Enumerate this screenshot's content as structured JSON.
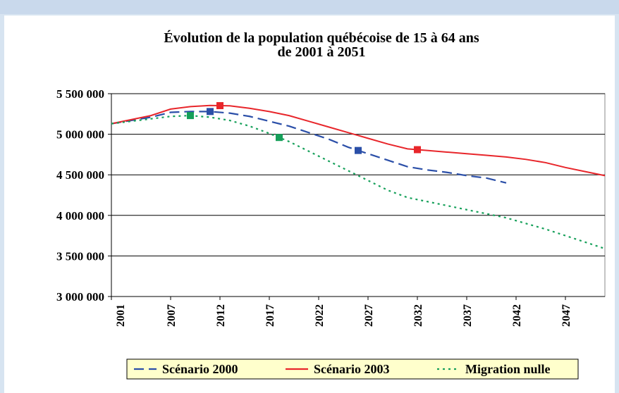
{
  "chart_data": {
    "type": "line",
    "title": "Évolution de la population québécoise de 15 à 64 ans",
    "subtitle": "de 2001 à 2051",
    "x": [
      2001,
      2003,
      2005,
      2007,
      2009,
      2011,
      2013,
      2015,
      2017,
      2019,
      2021,
      2023,
      2025,
      2027,
      2029,
      2031,
      2033,
      2035,
      2037,
      2039,
      2041,
      2043,
      2045,
      2047,
      2049,
      2051
    ],
    "xlim": [
      2001,
      2051
    ],
    "xticks": [
      2001,
      2007,
      2012,
      2017,
      2022,
      2027,
      2032,
      2037,
      2042,
      2047
    ],
    "ylim": [
      3000000,
      5500000
    ],
    "yticks": [
      {
        "value": 3000000,
        "label": "3 000 000"
      },
      {
        "value": 3500000,
        "label": "3 500 000"
      },
      {
        "value": 4000000,
        "label": "4 000 000"
      },
      {
        "value": 4500000,
        "label": "4 500 000"
      },
      {
        "value": 5000000,
        "label": "5 000 000"
      },
      {
        "value": 5500000,
        "label": "5 500 000"
      }
    ],
    "grid": true,
    "legend": "bottom",
    "series": [
      {
        "name": "Scénario 2000",
        "color": "#2b4fa8",
        "dash": "dashed",
        "markers": [
          2011,
          2026
        ],
        "values": [
          5130000,
          5170000,
          5210000,
          5270000,
          5280000,
          5280000,
          5260000,
          5220000,
          5160000,
          5100000,
          5020000,
          4940000,
          4840000,
          4760000,
          4680000,
          4600000,
          4560000,
          4530000,
          4490000,
          4460000,
          4400000,
          null,
          null,
          null,
          null,
          null
        ]
      },
      {
        "name": "Scénario 2003",
        "color": "#e8262b",
        "dash": "solid",
        "markers": [
          2012,
          2032
        ],
        "values": [
          5130000,
          5180000,
          5230000,
          5310000,
          5340000,
          5355000,
          5350000,
          5320000,
          5280000,
          5230000,
          5160000,
          5090000,
          5020000,
          4950000,
          4880000,
          4820000,
          4800000,
          4780000,
          4760000,
          4740000,
          4720000,
          4690000,
          4650000,
          4590000,
          4540000,
          4490000
        ]
      },
      {
        "name": "Migration nulle",
        "color": "#16a05a",
        "dash": "dotted",
        "markers": [
          2009,
          2018
        ],
        "values": [
          5130000,
          5160000,
          5190000,
          5220000,
          5230000,
          5210000,
          5170000,
          5100000,
          5010000,
          4910000,
          4790000,
          4670000,
          4550000,
          4430000,
          4310000,
          4220000,
          4170000,
          4120000,
          4070000,
          4020000,
          3970000,
          3900000,
          3830000,
          3750000,
          3670000,
          3590000
        ]
      }
    ]
  }
}
